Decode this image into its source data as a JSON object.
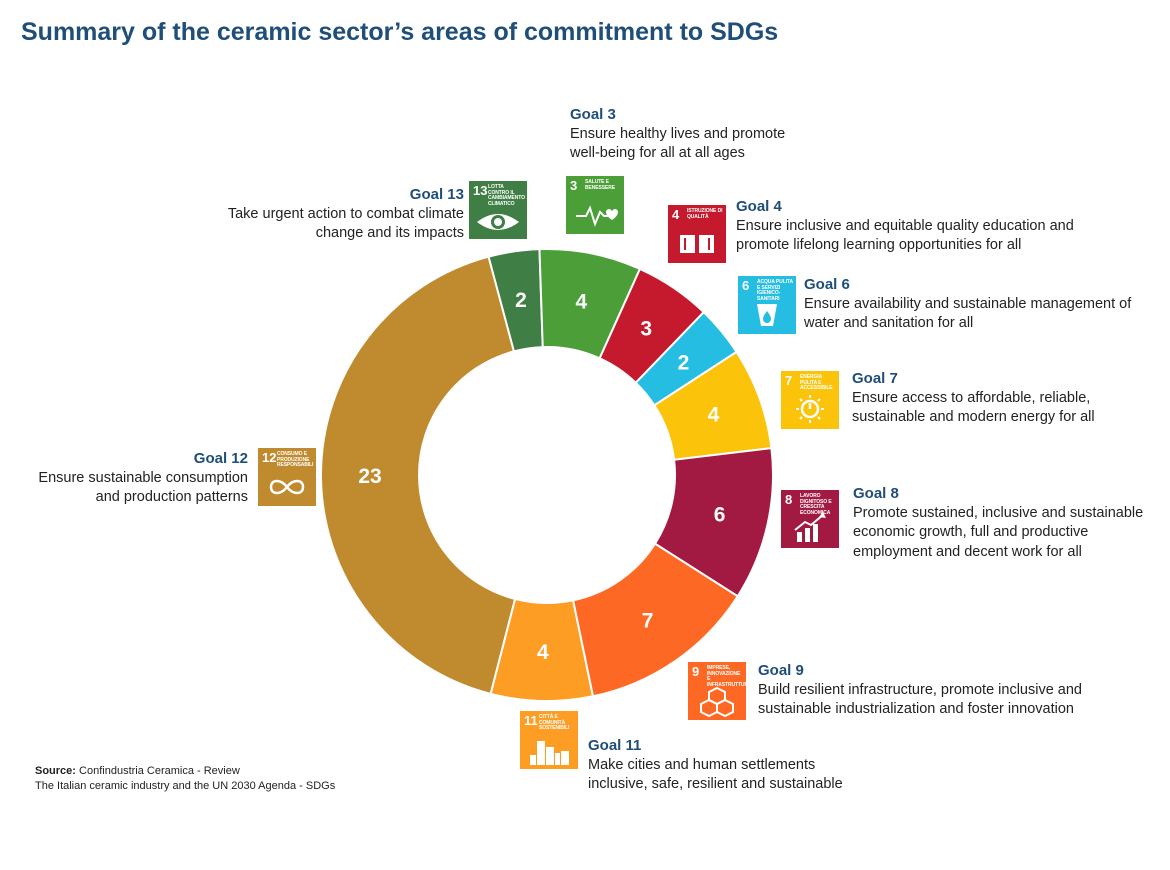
{
  "title": "Summary of the ceramic sector’s areas of commitment to SDGs",
  "chart_data": {
    "type": "pie",
    "donut": true,
    "title": "Summary of the ceramic sector’s areas of commitment to SDGs",
    "categories": [
      "Goal 13",
      "Goal 3",
      "Goal 4",
      "Goal 6",
      "Goal 7",
      "Goal 8",
      "Goal 9",
      "Goal 11",
      "Goal 12"
    ],
    "values": [
      2,
      4,
      3,
      2,
      4,
      6,
      7,
      4,
      23
    ],
    "colors": [
      "#3f7e44",
      "#4c9f38",
      "#c5192d",
      "#26bde2",
      "#fcc30b",
      "#a21942",
      "#fd6925",
      "#fd9d24",
      "#bf8b2e"
    ]
  },
  "goals": [
    {
      "id": "g13",
      "title": "Goal 13",
      "lines": [
        "Take urgent action to combat climate",
        "change and its impacts"
      ],
      "icon_num": "13",
      "icon_label": "LOTTA CONTRO IL CAMBIAMENTO CLIMATICO",
      "icon": "eye-globe-icon",
      "color": "#3f7e44"
    },
    {
      "id": "g3",
      "title": "Goal 3",
      "lines": [
        "Ensure healthy lives and promote",
        "well-being for all at all ages"
      ],
      "icon_num": "3",
      "icon_label": "SALUTE E BENESSERE",
      "icon": "heartbeat-icon",
      "color": "#4c9f38"
    },
    {
      "id": "g4",
      "title": "Goal 4",
      "lines": [
        "Ensure inclusive and equitable quality education and",
        "promote lifelong learning opportunities for all"
      ],
      "icon_num": "4",
      "icon_label": "ISTRUZIONE DI QUALITÀ",
      "icon": "book-icon",
      "color": "#c5192d"
    },
    {
      "id": "g6",
      "title": "Goal 6",
      "lines": [
        "Ensure availability and sustainable management of",
        "water and sanitation for all"
      ],
      "icon_num": "6",
      "icon_label": "ACQUA PULITA E SERVIZI IGIENICO-SANITARI",
      "icon": "water-glass-icon",
      "color": "#26bde2"
    },
    {
      "id": "g7",
      "title": "Goal 7",
      "lines": [
        "Ensure access to affordable, reliable,",
        "sustainable and modern energy for all"
      ],
      "icon_num": "7",
      "icon_label": "ENERGIA PULITA E ACCESSIBILE",
      "icon": "sun-power-icon",
      "color": "#fcc30b"
    },
    {
      "id": "g8",
      "title": "Goal 8",
      "lines": [
        "Promote sustained, inclusive and sustainable",
        "economic growth, full and productive",
        "employment and decent work for all"
      ],
      "icon_num": "8",
      "icon_label": "LAVORO DIGNITOSO E CRESCITA ECONOMICA",
      "icon": "growth-chart-icon",
      "color": "#a21942"
    },
    {
      "id": "g9",
      "title": "Goal 9",
      "lines": [
        "Build resilient infrastructure, promote inclusive and",
        "sustainable industrialization and foster innovation"
      ],
      "icon_num": "9",
      "icon_label": "IMPRESE, INNOVAZIONE E INFRASTRUTTURE",
      "icon": "cubes-icon",
      "color": "#fd6925"
    },
    {
      "id": "g11",
      "title": "Goal 11",
      "lines": [
        "Make cities and human settlements",
        "inclusive, safe, resilient and sustainable"
      ],
      "icon_num": "11",
      "icon_label": "CITTÀ E COMUNITÀ SOSTENIBILI",
      "icon": "city-icon",
      "color": "#fd9d24"
    },
    {
      "id": "g12",
      "title": "Goal 12",
      "lines": [
        "Ensure sustainable consumption",
        "and production patterns"
      ],
      "icon_num": "12",
      "icon_label": "CONSUMO E PRODUZIONE RESPONSABILI",
      "icon": "infinity-icon",
      "color": "#bf8b2e"
    }
  ],
  "source": {
    "label": "Source:",
    "line1": "Confindustria Ceramica - Review",
    "line2": "The Italian ceramic industry and the UN 2030 Agenda - SDGs"
  }
}
